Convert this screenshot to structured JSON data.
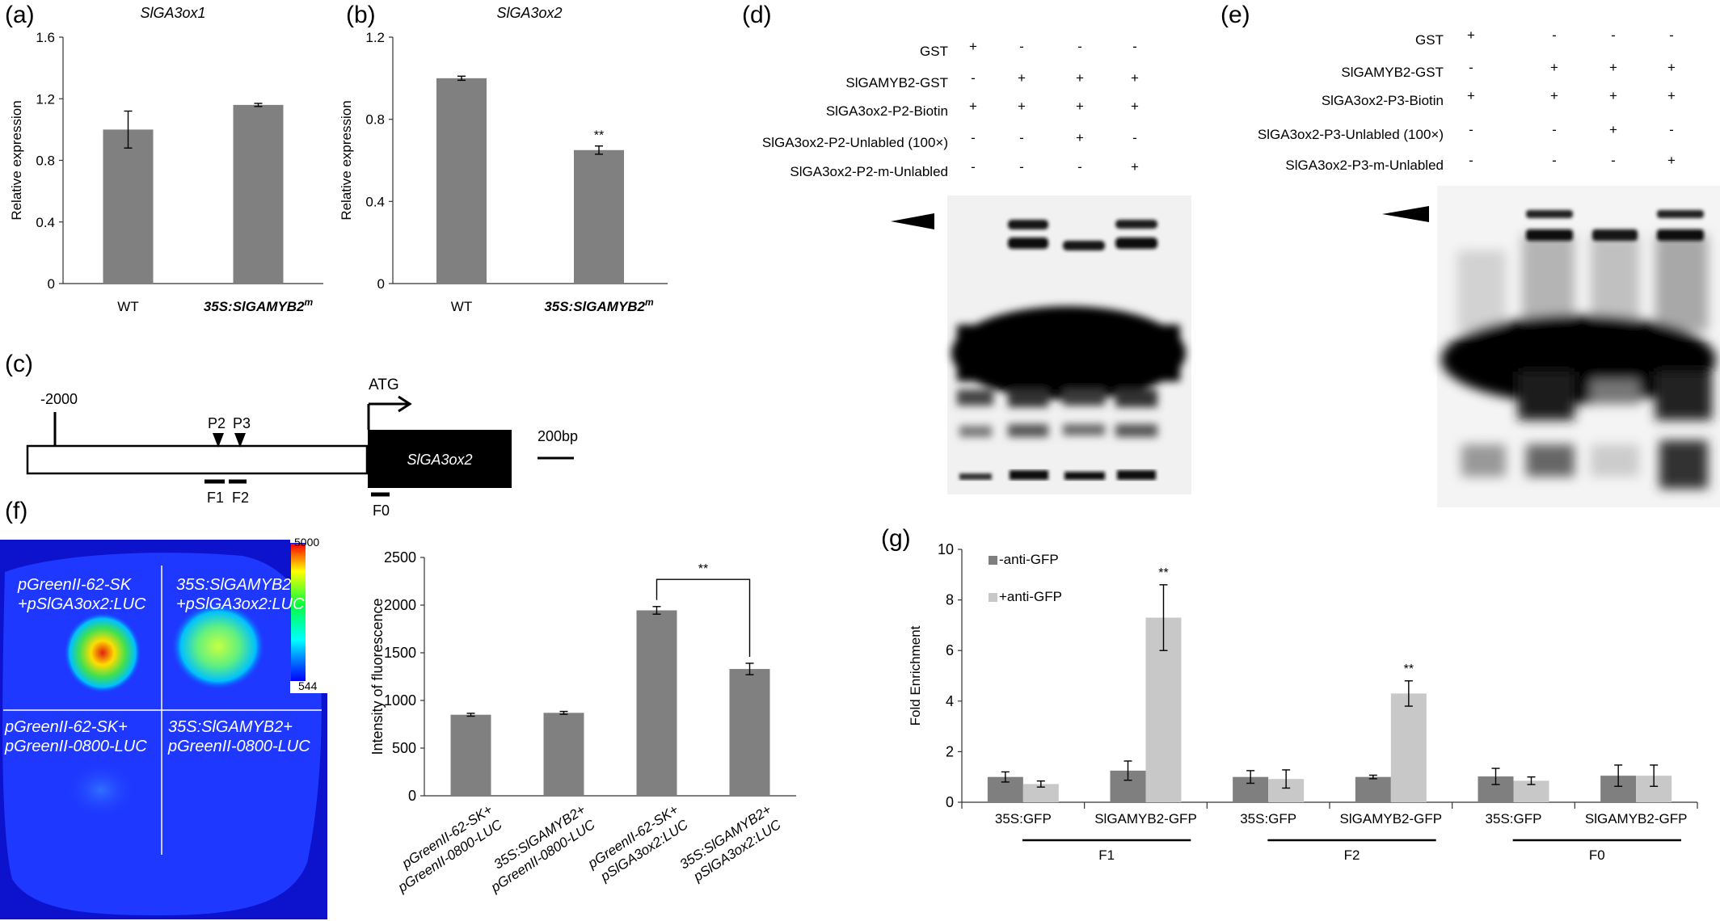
{
  "panels": {
    "a": {
      "label": "(a)"
    },
    "b": {
      "label": "(b)"
    },
    "c": {
      "label": "(c)"
    },
    "d": {
      "label": "(d)"
    },
    "e": {
      "label": "(e)"
    },
    "f": {
      "label": "(f)"
    },
    "g": {
      "label": "(g)"
    }
  },
  "chart_data": [
    {
      "id": "a",
      "type": "bar",
      "title": "SlGA3ox1",
      "ylabel": "Relative expression",
      "categories": [
        "WT",
        "35S:SlGAMYB2"
      ],
      "category_superscripts": [
        "",
        "m"
      ],
      "values": [
        1.0,
        1.16
      ],
      "errors": [
        0.12,
        0.01
      ],
      "ylim": [
        0,
        1.6
      ],
      "yticks": [
        "0",
        "0.4",
        "0.8",
        "1.2",
        "1.6"
      ],
      "significance": [
        "",
        ""
      ],
      "grid": false
    },
    {
      "id": "b",
      "type": "bar",
      "title": "SlGA3ox2",
      "ylabel": "Relative expression",
      "categories": [
        "WT",
        "35S:SlGAMYB2"
      ],
      "category_superscripts": [
        "",
        "m"
      ],
      "values": [
        1.0,
        0.65
      ],
      "errors": [
        0.01,
        0.02
      ],
      "ylim": [
        0,
        1.2
      ],
      "yticks": [
        "0",
        "0.4",
        "0.8",
        "1.2"
      ],
      "significance": [
        "",
        "**"
      ],
      "grid": false
    },
    {
      "id": "f",
      "type": "bar",
      "title": "",
      "ylabel": "Intensity of fluorescence",
      "categories": [
        "pGreenII-62-SK+\npGreenII-0800-LUC",
        "35S:SlGAMYB2+\npGreenII-0800-LUC",
        "pGreenII-62-SK+\npSlGA3ox2:LUC",
        "35S:SlGAMYB2+\npSlGA3ox2:LUC"
      ],
      "values": [
        850,
        870,
        1945,
        1330
      ],
      "errors": [
        15,
        15,
        40,
        60
      ],
      "ylim": [
        0,
        2500
      ],
      "yticks": [
        "0",
        "500",
        "1000",
        "1500",
        "2000",
        "2500"
      ],
      "bracket": {
        "from": 2,
        "to": 3,
        "label": "**"
      },
      "grid": false
    },
    {
      "id": "g",
      "type": "bar",
      "title": "",
      "ylabel": "Fold Enrichment",
      "categories": [
        "35S:GFP",
        "SlGAMYB2-GFP",
        "35S:GFP",
        "SlGAMYB2-GFP",
        "35S:GFP",
        "SlGAMYB2-GFP"
      ],
      "groups": [
        "F1",
        "F2",
        "F0"
      ],
      "series": [
        {
          "name": "-anti-GFP",
          "color": "#7f7f7f",
          "values": [
            1.0,
            1.25,
            1.0,
            1.0,
            1.02,
            1.05
          ],
          "errors": [
            0.2,
            0.38,
            0.25,
            0.07,
            0.32,
            0.42
          ]
        },
        {
          "name": "+anti-GFP",
          "color": "#c8c8c8",
          "values": [
            0.72,
            7.3,
            0.92,
            4.3,
            0.85,
            1.05
          ],
          "errors": [
            0.12,
            1.3,
            0.36,
            0.5,
            0.15,
            0.42
          ]
        }
      ],
      "significance": [
        "",
        "**",
        "",
        "**",
        "",
        ""
      ],
      "ylim": [
        0,
        10
      ],
      "yticks": [
        "0",
        "2",
        "4",
        "6",
        "8",
        "10"
      ],
      "legend": "top-left",
      "grid": false
    }
  ],
  "diagram_c": {
    "start": "-2000",
    "atg": "ATG",
    "gene": "SlGA3ox2",
    "scale": "200bp",
    "sites": [
      "P2",
      "P3"
    ],
    "fragments": [
      "F1",
      "F2",
      "F0"
    ]
  },
  "gel_d": {
    "rows": [
      "GST",
      "SlGAMYB2-GST",
      "SlGA3ox2-P2-Biotin",
      "SlGA3ox2-P2-Unlabled (100×)",
      "SlGA3ox2-P2-m-Unlabled"
    ],
    "signs": [
      [
        "+",
        "-",
        "-",
        "-"
      ],
      [
        "-",
        "+",
        "+",
        "+"
      ],
      [
        "+",
        "+",
        "+",
        "+"
      ],
      [
        "-",
        "-",
        "+",
        "-"
      ],
      [
        "-",
        "-",
        "-",
        "+"
      ]
    ]
  },
  "gel_e": {
    "rows": [
      "GST",
      "SlGAMYB2-GST",
      "SlGA3ox2-P3-Biotin",
      "SlGA3ox2-P3-Unlabled (100×)",
      "SlGA3ox2-P3-m-Unlabled"
    ],
    "signs": [
      [
        "+",
        "-",
        "-",
        "-"
      ],
      [
        "-",
        "+",
        "+",
        "+"
      ],
      [
        "+",
        "+",
        "+",
        "+"
      ],
      [
        "-",
        "-",
        "+",
        "-"
      ],
      [
        "-",
        "-",
        "-",
        "+"
      ]
    ]
  },
  "luc_image": {
    "quadrants": [
      "pGreenII-62-SK\n+pSlGA3ox2:LUC",
      "35S:SlGAMYB2\n+pSlGA3ox2:LUC",
      "pGreenII-62-SK+\npGreenII-0800-LUC",
      "35S:SlGAMYB2+\npGreenII-0800-LUC"
    ],
    "scale_max": "5000",
    "scale_min": "544"
  }
}
